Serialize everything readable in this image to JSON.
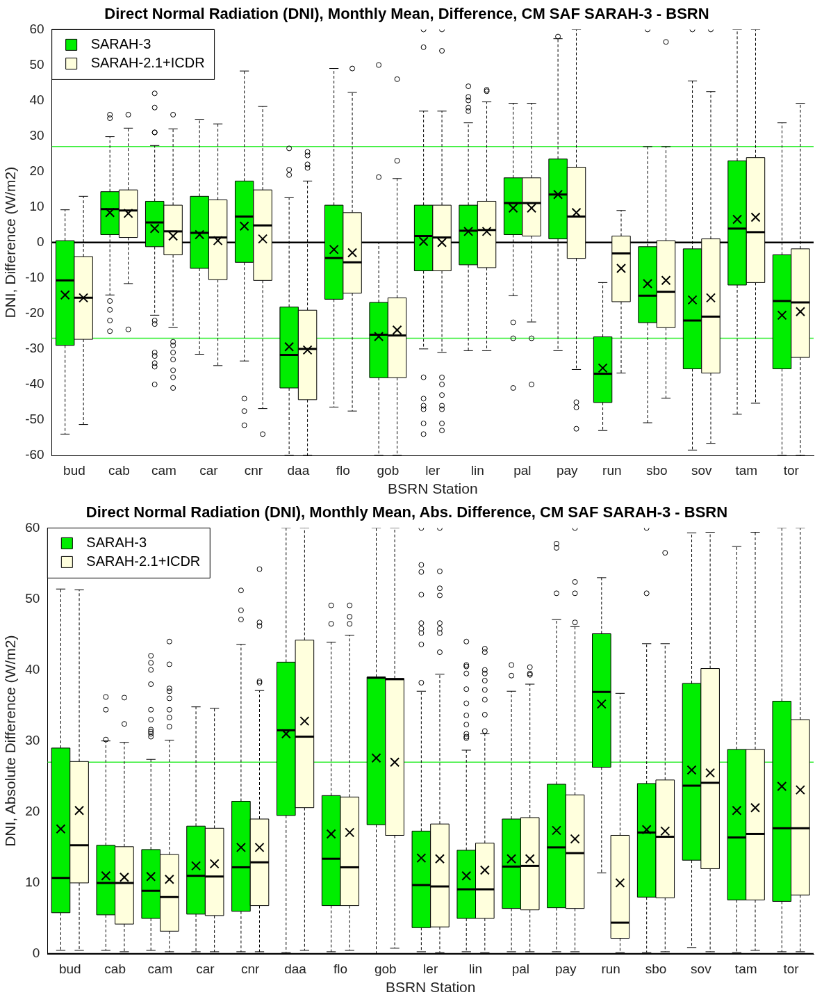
{
  "chart_data": [
    {
      "type": "box",
      "title": "Direct Normal Radiation (DNI), Monthly Mean, Difference, CM SAF SARAH-3 - BSRN",
      "xlabel": "BSRN Station",
      "ylabel": "DNI, Difference (W/m2)",
      "categories": [
        "bud",
        "cab",
        "cam",
        "car",
        "cnr",
        "daa",
        "flo",
        "gob",
        "ler",
        "lin",
        "pal",
        "pay",
        "run",
        "sbo",
        "sov",
        "tam",
        "tor"
      ],
      "ylim": [
        -60,
        60
      ],
      "yticks": [
        -60,
        -50,
        -40,
        -30,
        -20,
        -10,
        0,
        10,
        20,
        30,
        40,
        50,
        60
      ],
      "legend": "top left",
      "ref_lines": [
        {
          "axis": "y",
          "value": 0,
          "color": "#000000"
        },
        {
          "axis": "y",
          "value": 27,
          "color": "#33ee33"
        },
        {
          "axis": "y",
          "value": -27,
          "color": "#33ee33"
        }
      ],
      "series": [
        {
          "name": "SARAH-3",
          "color": "#00ee00",
          "boxes": [
            {
              "low": -54,
              "q1": -29,
              "median": -10.7,
              "q3": 0.5,
              "high": 9.2,
              "mean": -14.8
            },
            {
              "low": -14.8,
              "q1": 2.2,
              "median": 9.4,
              "q3": 14.3,
              "high": 29.8,
              "mean": 8.4,
              "outliers": [
                36,
                35,
                -16.5,
                -19,
                -22,
                -25
              ]
            },
            {
              "low": -20.5,
              "q1": -1.2,
              "median": 5.6,
              "q3": 11.6,
              "high": 27.3,
              "mean": 3.9,
              "outliers": [
                42,
                38,
                31,
                31,
                -22,
                -23,
                -31,
                -32,
                -34,
                -35,
                -40
              ]
            },
            {
              "low": -31.5,
              "q1": -7.3,
              "median": 2.7,
              "q3": 13,
              "high": 34.7,
              "mean": 2.2
            },
            {
              "low": -33.4,
              "q1": -5.6,
              "median": 7.3,
              "q3": 17.3,
              "high": 48.3,
              "mean": 4.6,
              "outliers": [
                -44,
                -47.5,
                -51.5
              ]
            },
            {
              "low": -60,
              "q1": -41,
              "median": -31.7,
              "q3": -18.2,
              "high": 12.6,
              "mean": -29.4,
              "outliers": [
                26.5,
                20.5,
                19
              ]
            },
            {
              "low": -46.4,
              "q1": -16,
              "median": -4.4,
              "q3": 10.5,
              "high": 49,
              "mean": -2
            },
            {
              "low": -60,
              "q1": -38.1,
              "median": -26,
              "q3": -16.9,
              "high": 0,
              "mean": -26.5,
              "outliers": [
                50,
                18.4
              ]
            },
            {
              "low": -30,
              "q1": -8,
              "median": 1.8,
              "q3": 10.5,
              "high": 37,
              "mean": 0.3,
              "outliers": [
                60,
                55,
                -38,
                -44,
                -46,
                -47,
                -51,
                -54
              ]
            },
            {
              "low": -30.5,
              "q1": -6.3,
              "median": 3.3,
              "q3": 10.5,
              "high": 33.7,
              "mean": 3.1,
              "outliers": [
                44,
                41,
                40,
                38,
                37
              ]
            },
            {
              "low": -15,
              "q1": 2.2,
              "median": 11.1,
              "q3": 18.2,
              "high": 39.2,
              "mean": 9.7,
              "outliers": [
                -22.5,
                -27,
                -41
              ]
            },
            {
              "low": -30.5,
              "q1": 1,
              "median": 13.5,
              "q3": 23.5,
              "high": 57.4,
              "mean": 13.5,
              "outliers": [
                58
              ]
            },
            {
              "low": -53,
              "q1": -45.1,
              "median": -37,
              "q3": -26.6,
              "high": -11.3,
              "mean": -35.4
            },
            {
              "low": -50.8,
              "q1": -22.6,
              "median": -15,
              "q3": -1.2,
              "high": 27,
              "mean": -11.6,
              "outliers": [
                60
              ]
            },
            {
              "low": -58.5,
              "q1": -35.6,
              "median": -22,
              "q3": -1.8,
              "high": 45.5,
              "mean": -16.2,
              "outliers": [
                60
              ]
            },
            {
              "low": -48.4,
              "q1": -12,
              "median": 3.9,
              "q3": 23,
              "high": 60,
              "mean": 6.5
            },
            {
              "low": -60,
              "q1": -35.6,
              "median": -16.5,
              "q3": -3.5,
              "high": 33.7,
              "mean": -20.5
            }
          ]
        },
        {
          "name": "SARAH-2.1+ICDR",
          "color": "#ffffdd",
          "boxes": [
            {
              "low": -51.3,
              "q1": -27.3,
              "median": -15.6,
              "q3": -4,
              "high": 13,
              "mean": -15.6
            },
            {
              "low": -11.6,
              "q1": 1.4,
              "median": 9,
              "q3": 14.8,
              "high": 32.2,
              "mean": 8.2,
              "outliers": [
                36,
                -24.5
              ]
            },
            {
              "low": -24,
              "q1": -3.5,
              "median": 3.1,
              "q3": 10.5,
              "high": 32,
              "mean": 1.8,
              "outliers": [
                36,
                -28,
                -29,
                -31,
                -33,
                -36,
                -38,
                -41
              ]
            },
            {
              "low": -34.7,
              "q1": -10.5,
              "median": 1.4,
              "q3": 12,
              "high": 33.4,
              "mean": 0.5
            },
            {
              "low": -46.8,
              "q1": -10.7,
              "median": 4.8,
              "q3": 14.8,
              "high": 38.3,
              "mean": 1,
              "outliers": [
                -54
              ]
            },
            {
              "low": -60,
              "q1": -44.3,
              "median": -30,
              "q3": -19.1,
              "high": 17.3,
              "mean": -30.3,
              "outliers": [
                25.5,
                24.5,
                22,
                21
              ]
            },
            {
              "low": -47.5,
              "q1": -14.3,
              "median": -5.6,
              "q3": 8.4,
              "high": 42.3,
              "mean": -2.9,
              "outliers": [
                49
              ]
            },
            {
              "low": -60,
              "q1": -38.1,
              "median": -26.2,
              "q3": -15.6,
              "high": 18,
              "mean": -24.7,
              "outliers": [
                46,
                23
              ]
            },
            {
              "low": -31,
              "q1": -8,
              "median": 1.4,
              "q3": 10.5,
              "high": 37,
              "mean": 0,
              "outliers": [
                60,
                54,
                -38,
                -40,
                -43,
                -46,
                -47,
                -51,
                -53
              ]
            },
            {
              "low": -30.5,
              "q1": -7.1,
              "median": 3.5,
              "q3": 11.6,
              "high": 39.6,
              "mean": 3.1,
              "outliers": [
                43,
                42.6
              ]
            },
            {
              "low": -22.4,
              "q1": 1.8,
              "median": 11.1,
              "q3": 18.2,
              "high": 39.2,
              "mean": 9.7,
              "outliers": [
                -27,
                -40
              ]
            },
            {
              "low": -35.8,
              "q1": -4.5,
              "median": 7.3,
              "q3": 21.2,
              "high": 60,
              "mean": 8.4,
              "outliers": [
                -45,
                -46.5,
                -52.5
              ]
            },
            {
              "low": -36.8,
              "q1": -16.7,
              "median": -3.1,
              "q3": 1.8,
              "high": 9,
              "mean": -7.3
            },
            {
              "low": -43.9,
              "q1": -24,
              "median": -13.9,
              "q3": 0.5,
              "high": 27,
              "mean": -10.7,
              "outliers": [
                56.5
              ]
            },
            {
              "low": -56.6,
              "q1": -36.8,
              "median": -20.9,
              "q3": 1,
              "high": 42.5,
              "mean": -15.6,
              "outliers": [
                60
              ]
            },
            {
              "low": -45.3,
              "q1": -11.3,
              "median": 2.9,
              "q3": 23.9,
              "high": 60,
              "mean": 7.1
            },
            {
              "low": -60,
              "q1": -32.4,
              "median": -16.9,
              "q3": -1.8,
              "high": 39.2,
              "mean": -19.5
            }
          ]
        }
      ]
    },
    {
      "type": "box",
      "title": "Direct Normal Radiation (DNI), Monthly Mean, Abs. Difference, CM SAF SARAH-3 - BSRN",
      "xlabel": "BSRN Station",
      "ylabel": "DNI, Absolute Difference (W/m2)",
      "categories": [
        "bud",
        "cab",
        "cam",
        "car",
        "cnr",
        "daa",
        "flo",
        "gob",
        "ler",
        "lin",
        "pal",
        "pay",
        "run",
        "sbo",
        "sov",
        "tam",
        "tor"
      ],
      "ylim": [
        0,
        60
      ],
      "yticks": [
        0,
        10,
        20,
        30,
        40,
        50,
        60
      ],
      "legend": "top left",
      "ref_lines": [
        {
          "axis": "y",
          "value": 0,
          "color": "#000000"
        },
        {
          "axis": "y",
          "value": 27,
          "color": "#33ee33"
        }
      ],
      "series": [
        {
          "name": "SARAH-3",
          "color": "#00ee00",
          "boxes": [
            {
              "low": 0.5,
              "q1": 5.8,
              "median": 10.7,
              "q3": 29,
              "high": 51.4,
              "mean": 17.6
            },
            {
              "low": 0.5,
              "q1": 5.5,
              "median": 10,
              "q3": 15.3,
              "high": 30,
              "mean": 11,
              "outliers": [
                36.2,
                34.4,
                30.2
              ]
            },
            {
              "low": 0.5,
              "q1": 5,
              "median": 8.9,
              "q3": 14.7,
              "high": 27.4,
              "mean": 10.9,
              "outliers": [
                42,
                41,
                40,
                38,
                34.4,
                33,
                31.6,
                31.3,
                31,
                30.6
              ]
            },
            {
              "low": 0.3,
              "q1": 5.6,
              "median": 11,
              "q3": 18,
              "high": 34.8,
              "mean": 12.4
            },
            {
              "low": 0.3,
              "q1": 6,
              "median": 12.2,
              "q3": 21.5,
              "high": 43.6,
              "mean": 15,
              "outliers": [
                51.2,
                48.4,
                47.1
              ]
            },
            {
              "low": 0.2,
              "q1": 19.5,
              "median": 31.5,
              "q3": 41.1,
              "high": 60,
              "mean": 31
            },
            {
              "low": 0.3,
              "q1": 6.8,
              "median": 13.4,
              "q3": 22.3,
              "high": 43.9,
              "mean": 16.9,
              "outliers": [
                49.1,
                46.5
              ]
            },
            {
              "low": 0,
              "q1": 18.2,
              "median": 38.9,
              "q3": 39,
              "high": 60,
              "mean": 27.6
            },
            {
              "low": 0.3,
              "q1": 3.7,
              "median": 9.7,
              "q3": 17.3,
              "high": 37,
              "mean": 13.5,
              "outliers": [
                60,
                54.8,
                53.8,
                50.6,
                46.6,
                45.8,
                45.2,
                43.6,
                38.2
              ]
            },
            {
              "low": 0.3,
              "q1": 5,
              "median": 9.1,
              "q3": 14.6,
              "high": 28.7,
              "mean": 11,
              "outliers": [
                44,
                40.7,
                40.5,
                39.5,
                37.3,
                35.3,
                33.6,
                32.3,
                31,
                30.6,
                30.4
              ]
            },
            {
              "low": 0.3,
              "q1": 6.4,
              "median": 12.3,
              "q3": 19,
              "high": 37,
              "mean": 13.4,
              "outliers": [
                40.7,
                39.2
              ]
            },
            {
              "low": 0.3,
              "q1": 6.5,
              "median": 15,
              "q3": 23.9,
              "high": 47.1,
              "mean": 17.4,
              "outliers": [
                57.8,
                57.2,
                50.8
              ]
            },
            {
              "low": 11.4,
              "q1": 26.3,
              "median": 36.9,
              "q3": 45.1,
              "high": 53,
              "mean": 35.2
            },
            {
              "low": 0.2,
              "q1": 8,
              "median": 17.1,
              "q3": 24,
              "high": 43.7,
              "mean": 17.5,
              "outliers": [
                60,
                50.8
              ]
            },
            {
              "low": 0.9,
              "q1": 13.2,
              "median": 23.7,
              "q3": 38.1,
              "high": 59.3,
              "mean": 25.9
            },
            {
              "low": 0.2,
              "q1": 7.6,
              "median": 16.4,
              "q3": 28.8,
              "high": 57.4,
              "mean": 20.2
            },
            {
              "low": 0.3,
              "q1": 7.4,
              "median": 17.7,
              "q3": 35.6,
              "high": 60,
              "mean": 23.6
            }
          ]
        },
        {
          "name": "SARAH-2.1+ICDR",
          "color": "#ffffdd",
          "boxes": [
            {
              "low": 0.5,
              "q1": 10,
              "median": 15.3,
              "q3": 27.1,
              "high": 51.3,
              "mean": 20.2
            },
            {
              "low": 0.3,
              "q1": 4.2,
              "median": 10,
              "q3": 15.1,
              "high": 29.8,
              "mean": 10.8,
              "outliers": [
                36.1,
                32.4
              ]
            },
            {
              "low": 0.3,
              "q1": 3.2,
              "median": 8,
              "q3": 14,
              "high": 30.1,
              "mean": 10.5,
              "outliers": [
                44,
                40.8,
                37.4,
                37,
                36,
                34.4,
                33.3,
                32
              ]
            },
            {
              "low": 0.3,
              "q1": 5.4,
              "median": 10.9,
              "q3": 17.7,
              "high": 34.6,
              "mean": 12.7
            },
            {
              "low": 0.3,
              "q1": 6.8,
              "median": 12.9,
              "q3": 19,
              "high": 37.1,
              "mean": 15,
              "outliers": [
                54.2,
                46.7,
                46.2,
                38.4,
                38.2
              ]
            },
            {
              "low": 0.5,
              "q1": 20.6,
              "median": 30.6,
              "q3": 44.2,
              "high": 60,
              "mean": 32.8
            },
            {
              "low": 0.5,
              "q1": 6.8,
              "median": 12.2,
              "q3": 22.1,
              "high": 44.9,
              "mean": 17.1,
              "outliers": [
                49.1,
                47.5,
                46.5
              ]
            },
            {
              "low": 0.8,
              "q1": 16.7,
              "median": 38.7,
              "q3": 38.8,
              "high": 60,
              "mean": 27
            },
            {
              "low": 0.2,
              "q1": 3.8,
              "median": 9.5,
              "q3": 18.3,
              "high": 39.4,
              "mean": 13.4,
              "outliers": [
                60,
                53.9,
                51.5,
                50.5,
                46.6,
                45.8,
                45.2,
                42.5
              ]
            },
            {
              "low": 0.2,
              "q1": 5,
              "median": 9.1,
              "q3": 15.6,
              "high": 31,
              "mean": 11.8,
              "outliers": [
                43,
                42.5,
                40,
                39.5,
                38.5,
                37.2,
                35.8,
                33.7,
                31.4
              ]
            },
            {
              "low": 0.3,
              "q1": 6.2,
              "median": 12.4,
              "q3": 19.2,
              "high": 38,
              "mean": 13.4,
              "outliers": [
                40.4,
                39.5,
                39.3
              ]
            },
            {
              "low": 0.3,
              "q1": 6.4,
              "median": 14.2,
              "q3": 22.4,
              "high": 46.1,
              "mean": 16.2,
              "outliers": [
                60,
                52.4,
                50.8,
                46.7
              ]
            },
            {
              "low": 0.2,
              "q1": 2.2,
              "median": 4.4,
              "q3": 16.7,
              "high": 36.7,
              "mean": 10
            },
            {
              "low": 0.3,
              "q1": 7.9,
              "median": 16.5,
              "q3": 24.5,
              "high": 43.7,
              "mean": 17.3,
              "outliers": [
                56.5
              ]
            },
            {
              "low": 0.3,
              "q1": 12,
              "median": 24.1,
              "q3": 40.2,
              "high": 59.4,
              "mean": 25.5
            },
            {
              "low": 0.5,
              "q1": 7.6,
              "median": 16.9,
              "q3": 28.8,
              "high": 59.4,
              "mean": 20.6
            },
            {
              "low": 0.3,
              "q1": 8.3,
              "median": 17.7,
              "q3": 33,
              "high": 60,
              "mean": 23.1
            }
          ]
        }
      ]
    }
  ]
}
